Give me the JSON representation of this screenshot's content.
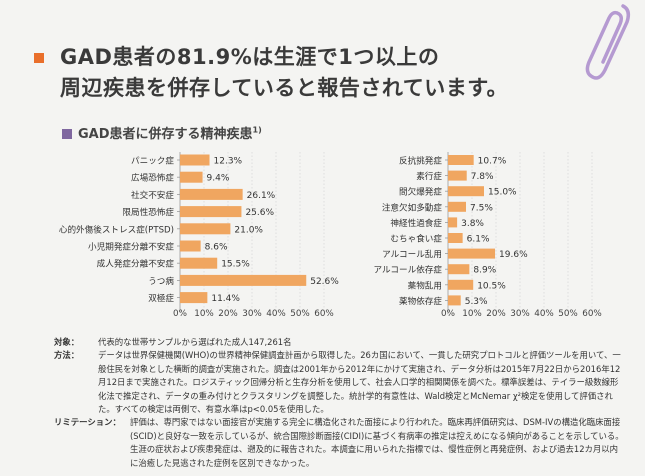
{
  "headline": {
    "line1": "GAD患者の81.9%は生涯で1つ以上の",
    "line2": "周辺疾患を併存していると報告されています。"
  },
  "section": {
    "title": "GAD患者に併存する精神疾患",
    "ref": "1)"
  },
  "colors": {
    "bar": "#f0a660",
    "accent": "#e96f2b",
    "section": "#7f679f"
  },
  "chart_data": [
    {
      "type": "bar",
      "orientation": "horizontal",
      "categories": [
        "パニック症",
        "広場恐怖症",
        "社交不安症",
        "限局性恐怖症",
        "心的外傷後ストレス症(PTSD)",
        "小児期発症分離不安症",
        "成人発症分離不安症",
        "うつ病",
        "双極症"
      ],
      "values": [
        12.3,
        9.4,
        26.1,
        25.6,
        21.0,
        8.6,
        15.5,
        52.6,
        11.4
      ],
      "labels": [
        "12.3%",
        "9.4%",
        "26.1%",
        "25.6%",
        "21.0%",
        "8.6%",
        "15.5%",
        "52.6%",
        "11.4%"
      ],
      "xlim": [
        0,
        60
      ],
      "ticks": [
        "0%",
        "10%",
        "20%",
        "30%",
        "40%",
        "50%",
        "60%"
      ]
    },
    {
      "type": "bar",
      "orientation": "horizontal",
      "categories": [
        "反抗挑発症",
        "素行症",
        "間欠爆発症",
        "注意欠如多動症",
        "神経性過食症",
        "むちゃ食い症",
        "アルコール乱用",
        "アルコール依存症",
        "薬物乱用",
        "薬物依存症"
      ],
      "values": [
        10.7,
        7.8,
        15.0,
        7.5,
        3.8,
        6.1,
        19.6,
        8.9,
        10.5,
        5.3
      ],
      "labels": [
        "10.7%",
        "7.8%",
        "15.0%",
        "7.5%",
        "3.8%",
        "6.1%",
        "19.6%",
        "8.9%",
        "10.5%",
        "5.3%"
      ],
      "xlim": [
        0,
        60
      ],
      "ticks": [
        "0%",
        "10%",
        "20%",
        "30%",
        "40%",
        "50%",
        "60%"
      ]
    }
  ],
  "notes": {
    "target_label": "対象：",
    "target_text": "代表的な世帯サンプルから選ばれた成人147,261名",
    "method_label": "方法：",
    "method_text": "データは世界保健機関(WHO)の世界精神保健調査計画から取得した。26カ国において、一貫した研究プロトコルと評価ツールを用いて、一般住民を対象とした横断的調査が実施された。調査は2001年から2012年にかけて実施され、データ分析は2015年7月22日から2016年12月12日まで実施された。ロジスティック回帰分析と生存分析を使用して、社会人口学的相関関係を調べた。標準誤差は、テイラー級数線形化法で推定され、データの重み付けとクラスタリングを調整した。統計学的有意性は、Wald検定とMcNemar χ²検定を使用して評価された。すべての検定は両側で、有意水準はp<0.05を使用した。",
    "limit_label": "リミテーション：",
    "limit_text": "評価は、専門家ではない面接官が実施する完全に構造化された面接により行われた。臨床再評価研究は、DSM-IVの構造化臨床面接(SCID)と良好な一致を示しているが、統合国際診断面接(CIDI)に基づく有病率の推定は控えめになる傾向があることを示している。生涯の症状および疾患発症は、遡及的に報告された。本調査に用いられた指標では、慢性症例と再発症例、および過去12カ月以内に治癒した見逃された症例を区別できなかった。"
  }
}
